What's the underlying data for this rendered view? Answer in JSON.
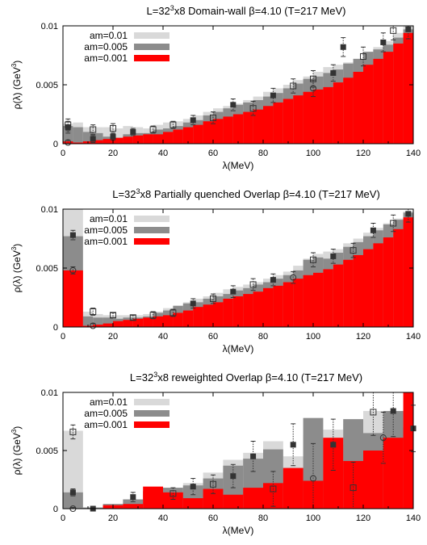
{
  "chart_data": [
    {
      "type": "histogram",
      "title_parts": [
        "L=32",
        "3",
        "x8 Domain-wall β=4.10 (T=217 MeV)"
      ],
      "xlabel": "λ(MeV)",
      "ylabel_parts": [
        "ρ(λ) (GeV",
        "3",
        ")"
      ],
      "xlim": [
        0,
        140
      ],
      "ylim": [
        0,
        0.01
      ],
      "xticks": [
        "0",
        "20",
        "40",
        "60",
        "80",
        "100",
        "120",
        "140"
      ],
      "yticks": [
        "0",
        "0.005",
        "0.01"
      ],
      "bin_edges": [
        0,
        4,
        8,
        12,
        16,
        20,
        24,
        28,
        32,
        36,
        40,
        44,
        48,
        52,
        56,
        60,
        64,
        68,
        72,
        76,
        80,
        84,
        88,
        92,
        96,
        100,
        104,
        108,
        112,
        116,
        120,
        124,
        128,
        132,
        136,
        140
      ],
      "series": [
        {
          "name": "am=0.01",
          "color": "#d9d9d9",
          "values": [
            0.0017,
            0.0018,
            0.0014,
            0.0014,
            0.0014,
            0.0013,
            0.0015,
            0.0014,
            0.0013,
            0.0016,
            0.0018,
            0.0019,
            0.0021,
            0.0024,
            0.0027,
            0.003,
            0.0032,
            0.0034,
            0.0037,
            0.004,
            0.0044,
            0.0047,
            0.005,
            0.0054,
            0.0057,
            0.0061,
            0.0065,
            0.0067,
            0.0069,
            0.0072,
            0.0076,
            0.0082,
            0.0087,
            0.0094,
            0.01
          ]
        },
        {
          "name": "am=0.005",
          "color": "#8c8c8c",
          "values": [
            0.0015,
            0.0014,
            0.001,
            0.0009,
            0.0006,
            0.0005,
            0.0008,
            0.0009,
            0.0009,
            0.0012,
            0.0013,
            0.0015,
            0.0018,
            0.002,
            0.0024,
            0.0027,
            0.003,
            0.0033,
            0.0035,
            0.0037,
            0.004,
            0.0043,
            0.0047,
            0.0051,
            0.0055,
            0.0057,
            0.006,
            0.0063,
            0.0068,
            0.0072,
            0.0078,
            0.008,
            0.0084,
            0.009,
            0.0097
          ]
        },
        {
          "name": "am=0.001",
          "color": "#ff0000",
          "values": [
            0.0002,
            0.0001,
            0.0002,
            0.0003,
            0.0004,
            0.0005,
            0.0006,
            0.0007,
            0.0008,
            0.0008,
            0.001,
            0.0012,
            0.0014,
            0.0016,
            0.0019,
            0.0021,
            0.0023,
            0.0025,
            0.0027,
            0.0029,
            0.0032,
            0.0035,
            0.0038,
            0.0041,
            0.0044,
            0.0046,
            0.0048,
            0.0052,
            0.0056,
            0.0061,
            0.0067,
            0.0072,
            0.0078,
            0.0085,
            0.0094
          ]
        }
      ],
      "points": [
        {
          "x": 2,
          "y": 0.0014,
          "marker": "filled-square",
          "err": 0.0005
        },
        {
          "x": 2,
          "y": 0.0016,
          "marker": "open-square",
          "err": 0.0005
        },
        {
          "x": 2,
          "y": 0.0001,
          "marker": "open-circle",
          "err": 0.0002
        },
        {
          "x": 12,
          "y": 0.0012,
          "marker": "open-square",
          "err": 0.0004
        },
        {
          "x": 12,
          "y": 0.0004,
          "marker": "filled-square",
          "err": 0.0003
        },
        {
          "x": 20,
          "y": 0.0013,
          "marker": "open-square",
          "err": 0.0004
        },
        {
          "x": 20,
          "y": 0.0006,
          "marker": "filled-square",
          "err": 0.0003
        },
        {
          "x": 28,
          "y": 0.001,
          "marker": "filled-square",
          "err": 0.0003
        },
        {
          "x": 36,
          "y": 0.0012,
          "marker": "open-square",
          "err": 0.0003
        },
        {
          "x": 44,
          "y": 0.0016,
          "marker": "open-square",
          "err": 0.0003
        },
        {
          "x": 52,
          "y": 0.002,
          "marker": "filled-square",
          "err": 0.0004
        },
        {
          "x": 60,
          "y": 0.0022,
          "marker": "open-square",
          "err": 0.0005
        },
        {
          "x": 68,
          "y": 0.0033,
          "marker": "filled-square",
          "err": 0.0005
        },
        {
          "x": 76,
          "y": 0.003,
          "marker": "open-square",
          "err": 0.0006
        },
        {
          "x": 84,
          "y": 0.0041,
          "marker": "filled-square",
          "err": 0.0006
        },
        {
          "x": 92,
          "y": 0.0049,
          "marker": "open-square",
          "err": 0.0006
        },
        {
          "x": 100,
          "y": 0.0055,
          "marker": "open-square",
          "err": 0.0007
        },
        {
          "x": 100,
          "y": 0.0047,
          "marker": "open-circle",
          "err": 0.0007
        },
        {
          "x": 108,
          "y": 0.006,
          "marker": "filled-square",
          "err": 0.0007
        },
        {
          "x": 112,
          "y": 0.0082,
          "marker": "filled-square",
          "err": 0.0008
        },
        {
          "x": 120,
          "y": 0.0074,
          "marker": "open-square",
          "err": 0.0008
        },
        {
          "x": 128,
          "y": 0.0086,
          "marker": "filled-square",
          "err": 0.0008
        },
        {
          "x": 132,
          "y": 0.0096,
          "marker": "open-square",
          "err": 0.0008
        },
        {
          "x": 138,
          "y": 0.0097,
          "marker": "filled-square",
          "err": 0.0008
        }
      ]
    },
    {
      "type": "histogram",
      "title_parts": [
        "L=32",
        "3",
        "x8 Partially quenched  Overlap β=4.10 (T=217 MeV)"
      ],
      "xlabel": "λ(MeV)",
      "ylabel_parts": [
        "ρ(λ) (GeV",
        "3",
        ")"
      ],
      "xlim": [
        0,
        140
      ],
      "ylim": [
        0,
        0.01
      ],
      "xticks": [
        "0",
        "20",
        "40",
        "60",
        "80",
        "100",
        "120",
        "140"
      ],
      "yticks": [
        "0",
        "0.005",
        "0.01"
      ],
      "bin_edges": [
        0,
        8,
        12,
        16,
        20,
        24,
        28,
        32,
        36,
        40,
        44,
        48,
        52,
        56,
        60,
        64,
        68,
        72,
        76,
        80,
        84,
        88,
        92,
        96,
        100,
        104,
        108,
        112,
        116,
        120,
        124,
        128,
        132,
        136,
        140
      ],
      "series": [
        {
          "name": "am=0.01",
          "color": "#d9d9d9",
          "values": [
            0.01,
            0.0013,
            0.0011,
            0.001,
            0.001,
            0.001,
            0.001,
            0.0011,
            0.0013,
            0.0016,
            0.0018,
            0.0021,
            0.0024,
            0.0026,
            0.0029,
            0.0032,
            0.0034,
            0.0036,
            0.0038,
            0.0041,
            0.0044,
            0.0047,
            0.0052,
            0.0058,
            0.0062,
            0.0064,
            0.0066,
            0.0071,
            0.0075,
            0.008,
            0.0084,
            0.0088,
            0.0092,
            0.0098
          ]
        },
        {
          "name": "am=0.005",
          "color": "#8c8c8c",
          "values": [
            0.0077,
            0.0009,
            0.0008,
            0.0008,
            0.0007,
            0.0008,
            0.0008,
            0.0009,
            0.0012,
            0.0014,
            0.0018,
            0.002,
            0.0021,
            0.0024,
            0.0026,
            0.0028,
            0.0031,
            0.0033,
            0.0036,
            0.0038,
            0.0041,
            0.0044,
            0.0048,
            0.0057,
            0.0059,
            0.0058,
            0.0063,
            0.0068,
            0.0072,
            0.0077,
            0.0082,
            0.0087,
            0.0091,
            0.0097
          ]
        },
        {
          "name": "am=0.001",
          "color": "#ff0000",
          "values": [
            0.0048,
            0.0001,
            0.0002,
            0.0003,
            0.0005,
            0.0006,
            0.0007,
            0.0008,
            0.0009,
            0.001,
            0.0012,
            0.0014,
            0.0017,
            0.0019,
            0.0021,
            0.0024,
            0.0026,
            0.0028,
            0.003,
            0.0033,
            0.0035,
            0.0038,
            0.0041,
            0.0044,
            0.0046,
            0.0049,
            0.0053,
            0.0057,
            0.0061,
            0.0066,
            0.0071,
            0.0076,
            0.0083,
            0.0093
          ]
        }
      ],
      "points": [
        {
          "x": 4,
          "y": 0.0078,
          "marker": "filled-square",
          "err": 0.0004
        },
        {
          "x": 4,
          "y": 0.0048,
          "marker": "open-circle",
          "err": 0.0003
        },
        {
          "x": 12,
          "y": 0.0013,
          "marker": "open-square",
          "err": 0.0003
        },
        {
          "x": 12,
          "y": 0.0001,
          "marker": "open-circle",
          "err": 0.0002
        },
        {
          "x": 20,
          "y": 0.001,
          "marker": "open-square",
          "err": 0.0002
        },
        {
          "x": 28,
          "y": 0.0008,
          "marker": "open-square",
          "err": 0.0002
        },
        {
          "x": 36,
          "y": 0.001,
          "marker": "open-square",
          "err": 0.0003
        },
        {
          "x": 44,
          "y": 0.0012,
          "marker": "open-square",
          "err": 0.0003
        },
        {
          "x": 52,
          "y": 0.002,
          "marker": "filled-square",
          "err": 0.0004
        },
        {
          "x": 60,
          "y": 0.0024,
          "marker": "open-square",
          "err": 0.0004
        },
        {
          "x": 68,
          "y": 0.003,
          "marker": "filled-square",
          "err": 0.0005
        },
        {
          "x": 76,
          "y": 0.0036,
          "marker": "open-square",
          "err": 0.0005
        },
        {
          "x": 84,
          "y": 0.004,
          "marker": "filled-square",
          "err": 0.0005
        },
        {
          "x": 92,
          "y": 0.0042,
          "marker": "open-circle",
          "err": 0.0005
        },
        {
          "x": 100,
          "y": 0.0057,
          "marker": "open-square",
          "err": 0.0006
        },
        {
          "x": 108,
          "y": 0.006,
          "marker": "filled-square",
          "err": 0.0006
        },
        {
          "x": 116,
          "y": 0.0065,
          "marker": "open-square",
          "err": 0.0006
        },
        {
          "x": 124,
          "y": 0.0082,
          "marker": "filled-square",
          "err": 0.0006
        },
        {
          "x": 132,
          "y": 0.0088,
          "marker": "open-square",
          "err": 0.0007
        },
        {
          "x": 138,
          "y": 0.0096,
          "marker": "filled-square",
          "err": 0.0007
        }
      ]
    },
    {
      "type": "histogram",
      "title_parts": [
        "L=32",
        "3",
        "x8 reweighted Overlap β=4.10 (T=217 MeV)"
      ],
      "xlabel": "λ(MeV)",
      "ylabel_parts": [
        "ρ(λ) (GeV",
        "3",
        ")"
      ],
      "xlim": [
        0,
        140
      ],
      "ylim": [
        0,
        0.01
      ],
      "xticks": [
        "0",
        "20",
        "40",
        "60",
        "80",
        "100",
        "120",
        "140"
      ],
      "yticks": [
        "0",
        "0.005",
        "0.01"
      ],
      "bin_edges": [
        0,
        8,
        16,
        24,
        32,
        40,
        48,
        56,
        64,
        72,
        80,
        88,
        96,
        104,
        112,
        120,
        128,
        136,
        140
      ],
      "series": [
        {
          "name": "am=0.01",
          "color": "#d9d9d9",
          "values": [
            0.0067,
            0.0001,
            0.0004,
            0.0008,
            0.0013,
            0.0017,
            0.0022,
            0.0031,
            0.0042,
            0.0048,
            0.0058,
            0.0045,
            0.0063,
            0.0068,
            0.0073,
            0.0084,
            0.0083,
            0.01
          ]
        },
        {
          "name": "am=0.005",
          "color": "#8c8c8c",
          "values": [
            0.0014,
            0.0001,
            0.0004,
            0.0008,
            0.0015,
            0.0018,
            0.002,
            0.0026,
            0.0037,
            0.0043,
            0.0051,
            0.0035,
            0.0078,
            0.0055,
            0.0077,
            0.0065,
            0.0084,
            0.007
          ]
        },
        {
          "name": "am=0.001",
          "color": "#ff0000",
          "values": [
            0.0,
            0.0,
            0.0003,
            0.0004,
            0.0019,
            0.0014,
            0.0009,
            0.0017,
            0.0012,
            0.0018,
            0.0022,
            0.0035,
            0.0024,
            0.0061,
            0.0041,
            0.005,
            0.0061,
            0.01
          ]
        }
      ],
      "points": [
        {
          "x": 4,
          "y": 0.0066,
          "marker": "open-square",
          "err": 0.0006
        },
        {
          "x": 4,
          "y": 0.0014,
          "marker": "filled-square",
          "err": 0.0003
        },
        {
          "x": 4,
          "y": 0.0,
          "marker": "open-circle",
          "err": 0.0001
        },
        {
          "x": 12,
          "y": 0.0,
          "marker": "filled-square",
          "err": 0.0001
        },
        {
          "x": 28,
          "y": 0.001,
          "marker": "filled-square",
          "err": 0.0004
        },
        {
          "x": 44,
          "y": 0.0013,
          "marker": "open-square",
          "err": 0.0005
        },
        {
          "x": 52,
          "y": 0.0019,
          "marker": "filled-square",
          "err": 0.0007
        },
        {
          "x": 60,
          "y": 0.0021,
          "marker": "open-square",
          "err": 0.0008
        },
        {
          "x": 68,
          "y": 0.0028,
          "marker": "filled-square",
          "err": 0.001
        },
        {
          "x": 76,
          "y": 0.0045,
          "marker": "filled-square",
          "err": 0.0013
        },
        {
          "x": 84,
          "y": 0.0017,
          "marker": "open-square",
          "err": 0.0015
        },
        {
          "x": 92,
          "y": 0.0055,
          "marker": "filled-square",
          "err": 0.0018
        },
        {
          "x": 100,
          "y": 0.0026,
          "marker": "open-circle",
          "err": 0.003
        },
        {
          "x": 108,
          "y": 0.0055,
          "marker": "filled-square",
          "err": 0.0022
        },
        {
          "x": 116,
          "y": 0.0018,
          "marker": "open-square",
          "err": 0.0022
        },
        {
          "x": 124,
          "y": 0.0083,
          "marker": "open-square",
          "err": 0.002
        },
        {
          "x": 128,
          "y": 0.0061,
          "marker": "open-circle",
          "err": 0.0022
        },
        {
          "x": 132,
          "y": 0.0084,
          "marker": "filled-square",
          "err": 0.0022
        },
        {
          "x": 140,
          "y": 0.0069,
          "marker": "filled-square",
          "err": 0.002
        }
      ]
    }
  ]
}
